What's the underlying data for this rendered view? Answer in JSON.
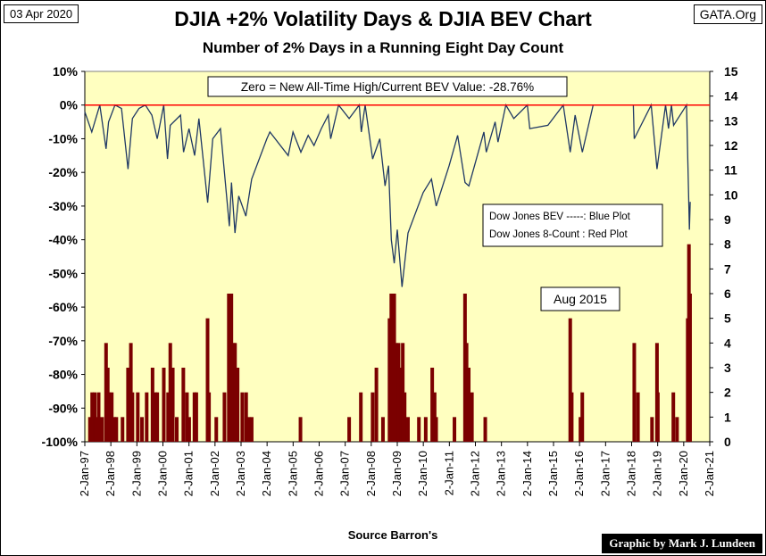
{
  "header": {
    "date": "03 Apr 2020",
    "site": "GATA.Org",
    "title": "DJIA +2% Volatility Days & DJIA BEV Chart",
    "subtitle": "Number of 2% Days in a Running Eight Day Count"
  },
  "footer": {
    "source": "Source Barron's",
    "credit": "Graphic by Mark J. Lundeen"
  },
  "annotations": {
    "zero_note": "Zero = New All-Time High/Current BEV Value:  -28.76%",
    "legend_line1": "Dow Jones BEV -----: Blue Plot",
    "legend_line2": "Dow Jones 8-Count : Red Plot",
    "aug_label": "Aug 2015"
  },
  "colors": {
    "plot_bg": "#ffffc0",
    "bev_line": "#1f3864",
    "count_fill": "#7b0000",
    "zero_line": "#ff0000"
  },
  "chart_data": {
    "type": "line",
    "x_ticks": [
      "2-Jan-97",
      "2-Jan-98",
      "2-Jan-99",
      "2-Jan-00",
      "2-Jan-01",
      "2-Jan-02",
      "2-Jan-03",
      "2-Jan-04",
      "2-Jan-05",
      "2-Jan-06",
      "2-Jan-07",
      "2-Jan-08",
      "2-Jan-09",
      "2-Jan-10",
      "2-Jan-11",
      "2-Jan-12",
      "2-Jan-13",
      "2-Jan-14",
      "2-Jan-15",
      "2-Jan-16",
      "2-Jan-17",
      "2-Jan-18",
      "2-Jan-19",
      "2-Jan-20",
      "2-Jan-21"
    ],
    "y_left": {
      "min": -100,
      "max": 10,
      "step": 10,
      "tick_labels": [
        "10%",
        "0%",
        "-10%",
        "-20%",
        "-30%",
        "-40%",
        "-50%",
        "-60%",
        "-70%",
        "-80%",
        "-90%",
        "-100%"
      ]
    },
    "y_right": {
      "min": 0,
      "max": 15,
      "step": 1,
      "tick_labels": [
        "15",
        "14",
        "13",
        "12",
        "11",
        "10",
        "9",
        "8",
        "7",
        "6",
        "5",
        "4",
        "3",
        "2",
        "1",
        "0"
      ]
    },
    "series": [
      {
        "name": "Dow Jones BEV",
        "axis": "left",
        "points": [
          [
            "1997-01-02",
            -2
          ],
          [
            "1997-04-10",
            -8
          ],
          [
            "1997-08-01",
            0
          ],
          [
            "1997-10-27",
            -13
          ],
          [
            "1997-12-01",
            -5
          ],
          [
            "1998-03-01",
            0
          ],
          [
            "1998-06-01",
            -1
          ],
          [
            "1998-08-31",
            -19
          ],
          [
            "1998-11-01",
            -4
          ],
          [
            "1999-02-01",
            -1
          ],
          [
            "1999-05-01",
            0
          ],
          [
            "1999-08-01",
            -3
          ],
          [
            "1999-10-15",
            -10
          ],
          [
            "2000-01-14",
            0
          ],
          [
            "2000-03-07",
            -16
          ],
          [
            "2000-04-15",
            -6
          ],
          [
            "2000-09-06",
            -3
          ],
          [
            "2000-10-18",
            -14
          ],
          [
            "2001-01-02",
            -7
          ],
          [
            "2001-03-22",
            -15
          ],
          [
            "2001-05-21",
            -4
          ],
          [
            "2001-09-21",
            -29
          ],
          [
            "2001-12-01",
            -10
          ],
          [
            "2002-03-19",
            -7
          ],
          [
            "2002-07-23",
            -36
          ],
          [
            "2002-08-22",
            -23
          ],
          [
            "2002-10-09",
            -38
          ],
          [
            "2002-12-01",
            -27
          ],
          [
            "2003-03-11",
            -33
          ],
          [
            "2003-06-01",
            -22
          ],
          [
            "2003-12-31",
            -10
          ],
          [
            "2004-02-11",
            -8
          ],
          [
            "2004-10-25",
            -15
          ],
          [
            "2004-12-31",
            -8
          ],
          [
            "2005-04-20",
            -14
          ],
          [
            "2005-08-01",
            -9
          ],
          [
            "2005-10-21",
            -12
          ],
          [
            "2006-02-01",
            -7
          ],
          [
            "2006-05-10",
            -3
          ],
          [
            "2006-06-13",
            -10
          ],
          [
            "2006-10-01",
            0
          ],
          [
            "2007-02-27",
            -4
          ],
          [
            "2007-07-19",
            0
          ],
          [
            "2007-08-16",
            -8
          ],
          [
            "2007-10-09",
            0
          ],
          [
            "2008-01-22",
            -16
          ],
          [
            "2008-05-01",
            -10
          ],
          [
            "2008-07-15",
            -24
          ],
          [
            "2008-09-01",
            -18
          ],
          [
            "2008-10-10",
            -40
          ],
          [
            "2008-11-20",
            -47
          ],
          [
            "2009-01-02",
            -37
          ],
          [
            "2009-03-09",
            -54
          ],
          [
            "2009-06-01",
            -38
          ],
          [
            "2009-12-31",
            -26
          ],
          [
            "2010-04-26",
            -22
          ],
          [
            "2010-07-02",
            -30
          ],
          [
            "2010-12-31",
            -18
          ],
          [
            "2011-04-29",
            -9
          ],
          [
            "2011-08-10",
            -23
          ],
          [
            "2011-10-03",
            -24
          ],
          [
            "2012-05-01",
            -8
          ],
          [
            "2012-06-04",
            -14
          ],
          [
            "2012-10-05",
            -5
          ],
          [
            "2012-11-15",
            -11
          ],
          [
            "2013-03-05",
            0
          ],
          [
            "2013-06-24",
            -4
          ],
          [
            "2013-12-31",
            0
          ],
          [
            "2014-02-03",
            -7
          ],
          [
            "2014-10-15",
            -6
          ],
          [
            "2015-05-19",
            0
          ],
          [
            "2015-08-25",
            -14
          ],
          [
            "2015-11-01",
            -3
          ],
          [
            "2016-02-11",
            -14
          ],
          [
            "2016-07-12",
            0
          ],
          [
            "2017-06-01",
            0
          ],
          [
            "2018-01-26",
            0
          ],
          [
            "2018-02-08",
            -10
          ],
          [
            "2018-10-03",
            0
          ],
          [
            "2018-12-24",
            -19
          ],
          [
            "2019-04-23",
            0
          ],
          [
            "2019-06-03",
            -7
          ],
          [
            "2019-07-15",
            0
          ],
          [
            "2019-08-14",
            -6
          ],
          [
            "2020-02-12",
            0
          ],
          [
            "2020-03-23",
            -37
          ],
          [
            "2020-04-03",
            -28.76
          ]
        ]
      },
      {
        "name": "Dow Jones 8-Count",
        "axis": "right",
        "events": [
          [
            "1997-03-15",
            1
          ],
          [
            "1997-04-15",
            2
          ],
          [
            "1997-05-20",
            2
          ],
          [
            "1997-06-10",
            1
          ],
          [
            "1997-07-15",
            2
          ],
          [
            "1997-09-01",
            1
          ],
          [
            "1997-10-27",
            4
          ],
          [
            "1997-11-20",
            3
          ],
          [
            "1997-12-10",
            2
          ],
          [
            "1998-01-15",
            2
          ],
          [
            "1998-02-20",
            1
          ],
          [
            "1998-03-20",
            1
          ],
          [
            "1998-06-15",
            1
          ],
          [
            "1998-08-31",
            3
          ],
          [
            "1998-09-20",
            3
          ],
          [
            "1998-10-10",
            4
          ],
          [
            "1998-11-01",
            2
          ],
          [
            "1999-01-15",
            2
          ],
          [
            "1999-03-15",
            1
          ],
          [
            "1999-05-20",
            2
          ],
          [
            "1999-08-10",
            3
          ],
          [
            "1999-09-20",
            2
          ],
          [
            "1999-10-15",
            2
          ],
          [
            "2000-01-15",
            3
          ],
          [
            "2000-03-15",
            2
          ],
          [
            "2000-04-15",
            4
          ],
          [
            "2000-05-20",
            3
          ],
          [
            "2000-07-15",
            1
          ],
          [
            "2000-10-15",
            3
          ],
          [
            "2000-12-05",
            2
          ],
          [
            "2001-01-05",
            1
          ],
          [
            "2001-03-20",
            2
          ],
          [
            "2001-04-15",
            2
          ],
          [
            "2001-09-20",
            5
          ],
          [
            "2001-10-10",
            2
          ],
          [
            "2002-01-20",
            1
          ],
          [
            "2002-05-15",
            2
          ],
          [
            "2002-07-15",
            6
          ],
          [
            "2002-08-20",
            6
          ],
          [
            "2002-09-20",
            4
          ],
          [
            "2002-10-10",
            4
          ],
          [
            "2002-11-15",
            3
          ],
          [
            "2003-01-20",
            2
          ],
          [
            "2003-03-15",
            2
          ],
          [
            "2003-04-20",
            1
          ],
          [
            "2003-06-01",
            1
          ],
          [
            "2005-04-15",
            1
          ],
          [
            "2007-02-27",
            1
          ],
          [
            "2007-08-10",
            2
          ],
          [
            "2008-01-22",
            2
          ],
          [
            "2008-03-15",
            3
          ],
          [
            "2008-06-15",
            1
          ],
          [
            "2008-09-15",
            5
          ],
          [
            "2008-10-10",
            6
          ],
          [
            "2008-11-20",
            6
          ],
          [
            "2008-12-15",
            4
          ],
          [
            "2009-01-20",
            4
          ],
          [
            "2009-02-25",
            3
          ],
          [
            "2009-03-20",
            4
          ],
          [
            "2009-04-15",
            2
          ],
          [
            "2009-06-01",
            1
          ],
          [
            "2009-11-01",
            1
          ],
          [
            "2010-02-05",
            1
          ],
          [
            "2010-05-07",
            3
          ],
          [
            "2010-06-10",
            2
          ],
          [
            "2010-07-01",
            1
          ],
          [
            "2011-03-15",
            1
          ],
          [
            "2011-08-10",
            6
          ],
          [
            "2011-09-01",
            4
          ],
          [
            "2011-10-01",
            3
          ],
          [
            "2011-11-15",
            2
          ],
          [
            "2012-05-20",
            1
          ],
          [
            "2015-08-25",
            5
          ],
          [
            "2015-09-15",
            2
          ],
          [
            "2016-01-15",
            1
          ],
          [
            "2016-02-10",
            2
          ],
          [
            "2018-02-08",
            4
          ],
          [
            "2018-04-01",
            2
          ],
          [
            "2018-10-15",
            1
          ],
          [
            "2018-12-24",
            4
          ],
          [
            "2019-01-05",
            2
          ],
          [
            "2019-08-10",
            2
          ],
          [
            "2019-10-01",
            1
          ],
          [
            "2020-02-28",
            5
          ],
          [
            "2020-03-16",
            8
          ],
          [
            "2020-04-01",
            6
          ]
        ]
      }
    ],
    "reference_line": {
      "value": 0,
      "axis": "left"
    }
  }
}
